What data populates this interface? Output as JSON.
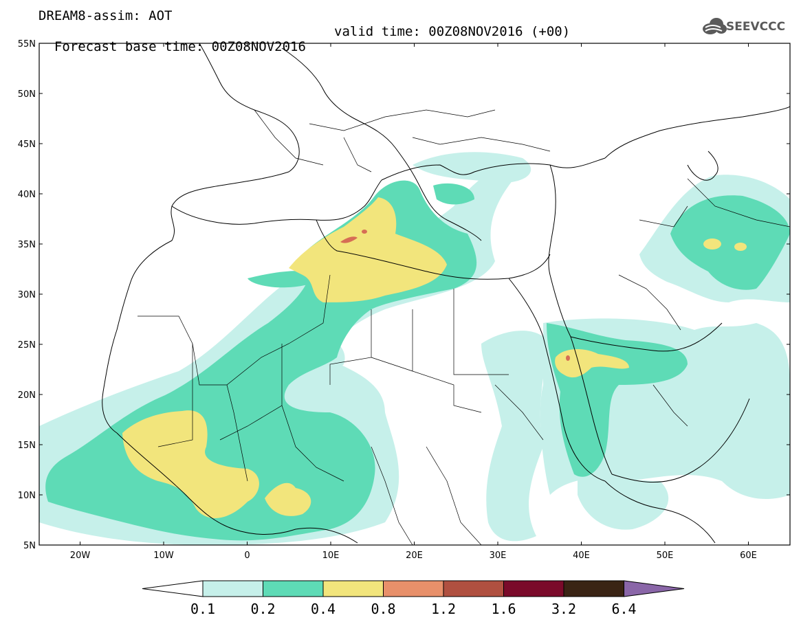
{
  "title": {
    "line1": "DREAM8-assim: AOT",
    "line2_base": "Forecast base time: 00Z08NOV2016",
    "line2_valid": "valid time: 00Z08NOV2016 (+00)"
  },
  "logo": {
    "text": "SEEVCCC",
    "icon": "cloud-logo-icon"
  },
  "map": {
    "lat_labels": [
      "55N",
      "50N",
      "45N",
      "40N",
      "35N",
      "30N",
      "25N",
      "20N",
      "15N",
      "10N",
      "5N"
    ],
    "lon_labels": [
      "20W",
      "10W",
      "0",
      "10E",
      "20E",
      "30E",
      "40E",
      "50E",
      "60E"
    ]
  },
  "colorbar": {
    "thresholds": [
      "0.1",
      "0.2",
      "0.4",
      "0.8",
      "1.2",
      "1.6",
      "3.2",
      "6.4"
    ],
    "colors": [
      "#ffffff",
      "#c6f0ea",
      "#5edbb6",
      "#f2e57c",
      "#e8906a",
      "#b05040",
      "#7a0a2a",
      "#3a2414",
      "#8a66a8"
    ]
  },
  "legend_colors": {
    "level1": "#c6f0ea",
    "level2": "#5edbb6",
    "level3": "#f2e57c",
    "level4": "#e8906a",
    "level5": "#b05040"
  }
}
